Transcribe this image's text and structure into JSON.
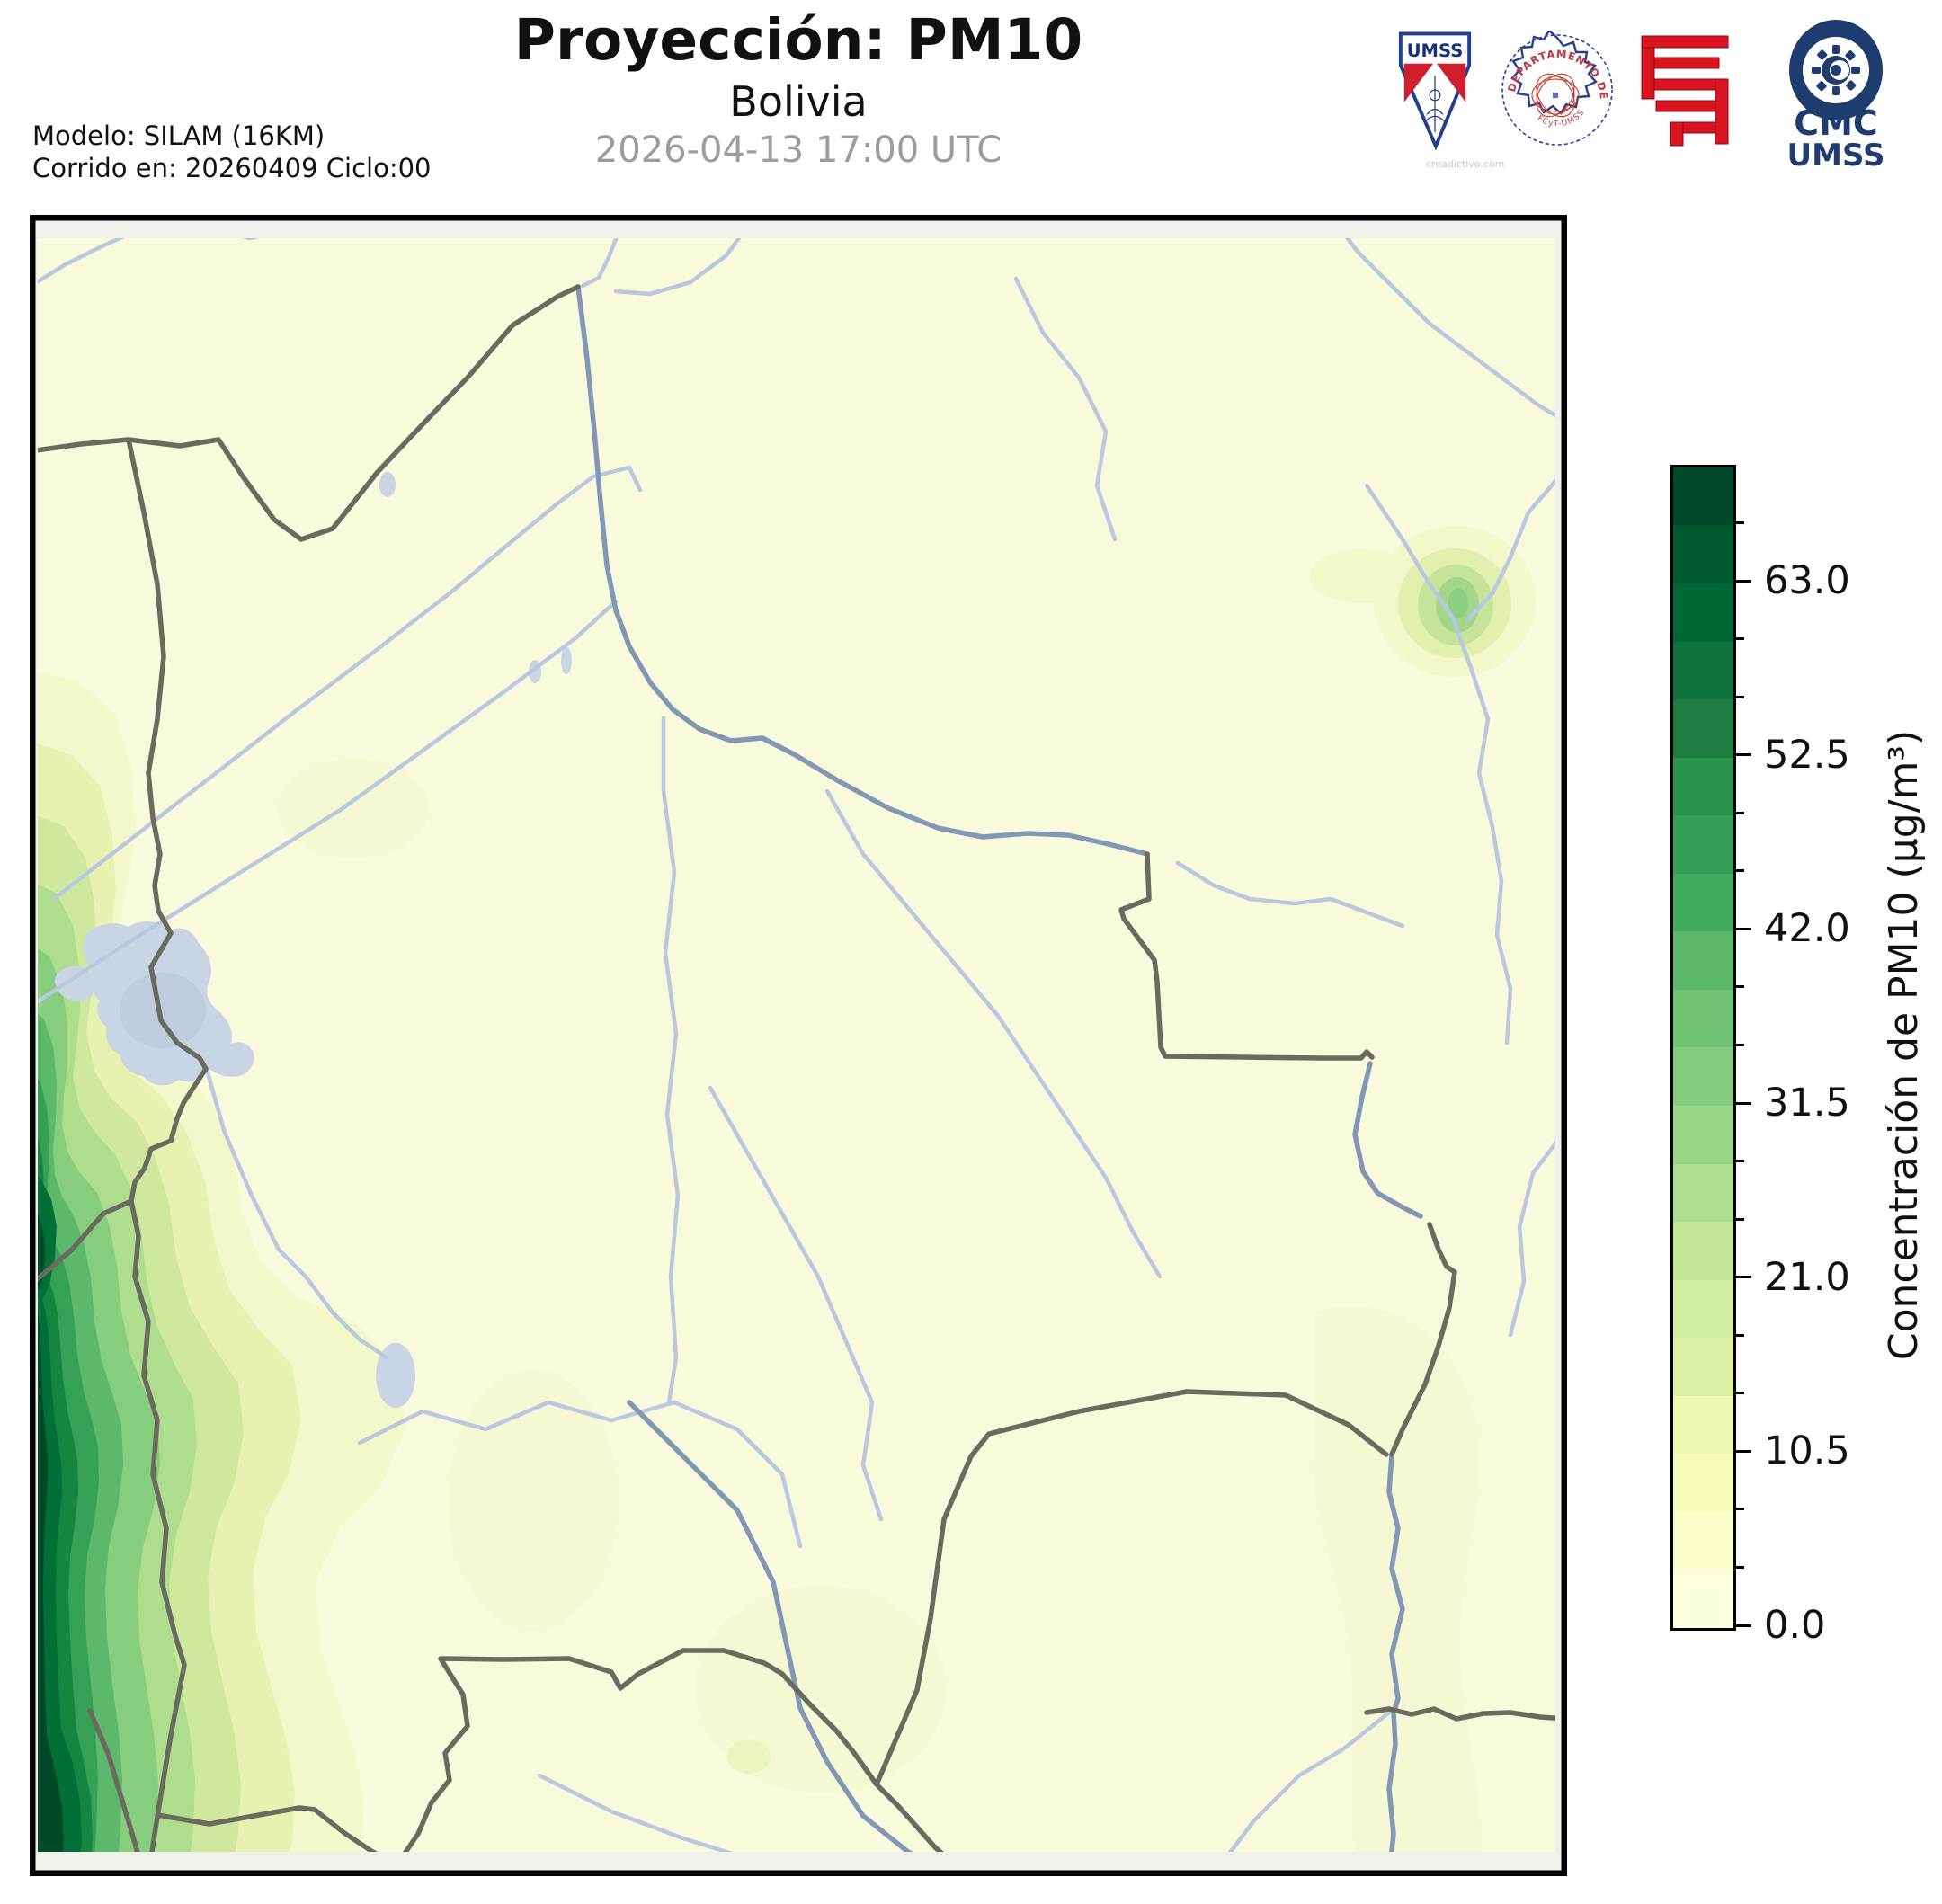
{
  "header": {
    "title": "Proyección: PM10",
    "subtitle": "Bolivia",
    "datetime": "2026-04-13 17:00 UTC",
    "model_line1": "Modelo: SILAM (16KM)",
    "model_line2": "Corrido en: 20260409 Ciclo:00"
  },
  "logos": {
    "umss_pennant_text": "UMSS",
    "physics_seal_arc_text": "DEPARTAMENTO DE FÍSICA",
    "physics_seal_bottom_text": "FCyT-UMSS",
    "cmc_line1": "CMC",
    "cmc_line2": "UMSS",
    "watermark": "creadictivo.com"
  },
  "colorbar": {
    "label": "Concentración de PM10 (µg/m³)",
    "range": [
      0,
      70
    ],
    "band_step": 3.5,
    "major_ticks": [
      {
        "value": 0,
        "label": "0.0"
      },
      {
        "value": 10.5,
        "label": "10.5"
      },
      {
        "value": 21,
        "label": "21.0"
      },
      {
        "value": 31.5,
        "label": "31.5"
      },
      {
        "value": 42,
        "label": "42.0"
      },
      {
        "value": 52.5,
        "label": "52.5"
      },
      {
        "value": 63,
        "label": "63.0"
      }
    ],
    "band_colors": [
      "#fdfedc",
      "#fafdc7",
      "#f7fcb9",
      "#ecf7b0",
      "#ddf1a5",
      "#d3eda0",
      "#c4e697",
      "#addd8e",
      "#9ad688",
      "#84cb7d",
      "#70c274",
      "#5bb86b",
      "#41ab5d",
      "#35a055",
      "#29924b",
      "#1d7d41",
      "#0f713c",
      "#006837",
      "#005a31",
      "#004a2b"
    ]
  },
  "map": {
    "colors": {
      "background": "#f9f9dc",
      "outside_grid": "#f1f1ec",
      "river": "#b6c9e1",
      "border_river": "#8197b6",
      "country_border": "#6a6a5f",
      "lake": "#c9d5e4",
      "frame": "#000000"
    }
  },
  "chart_data": {
    "type": "heatmap",
    "title": "Proyección: PM10",
    "region": "Bolivia",
    "variable": "PM10",
    "units": "µg/m³",
    "valid_time": "2026-04-13 17:00 UTC",
    "model": "SILAM (16KM)",
    "run": "20260409 Ciclo:00",
    "colormap": "YlGn",
    "levels": [
      0,
      3.5,
      7,
      10.5,
      14,
      17.5,
      21,
      24.5,
      28,
      31.5,
      35,
      38.5,
      42,
      45.5,
      49,
      52.5,
      56,
      59.5,
      63,
      66.5,
      70
    ],
    "features": [
      {
        "name": "andes-southwest-band",
        "description": "High PM10 band along SW Andes near Chile border",
        "approx_max": 70
      },
      {
        "name": "northeast-hotspot",
        "description": "Small localized maximum in NE near river",
        "approx_max": 21
      },
      {
        "name": "lowlands",
        "description": "Background over most of Bolivia",
        "approx_value": 0
      }
    ]
  }
}
